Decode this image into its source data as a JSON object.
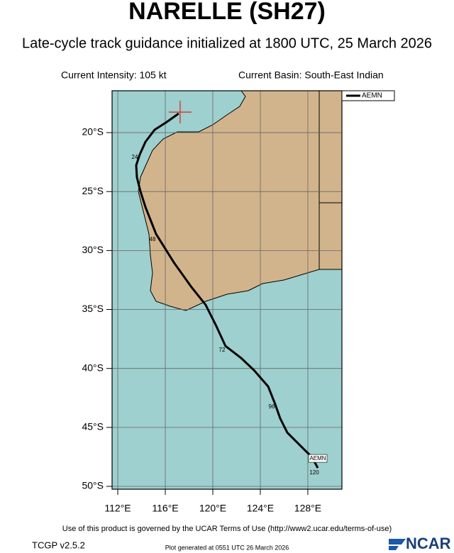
{
  "title": "NARELLE (SH27)",
  "subtitle": "Late-cycle track guidance initialized at 1800 UTC, 25 March 2026",
  "current_intensity": "Current Intensity: 105 kt",
  "current_basin": "Current Basin: South-East Indian",
  "map": {
    "lonlim": [
      111.52,
      130.87
    ],
    "latlim": [
      -16.45,
      -50.24
    ],
    "lonticks": [
      {
        "value": 112,
        "label": "112°E"
      },
      {
        "value": 116,
        "label": "116°E"
      },
      {
        "value": 120,
        "label": "120°E"
      },
      {
        "value": 124,
        "label": "124°E"
      },
      {
        "value": 128,
        "label": "128°E"
      }
    ],
    "latticks": [
      {
        "value": -20,
        "label": "20°S"
      },
      {
        "value": -25,
        "label": "25°S"
      },
      {
        "value": -30,
        "label": "30°S"
      },
      {
        "value": -35,
        "label": "35°S"
      },
      {
        "value": -40,
        "label": "40°S"
      },
      {
        "value": -45,
        "label": "45°S"
      },
      {
        "value": -50,
        "label": "50°S"
      }
    ],
    "current_position": {
      "lon": 117.25,
      "lat": -18.26
    },
    "track": {
      "name": "AEMN",
      "color": "#000000",
      "lon": [
        117.13,
        116.12,
        115.1,
        114.33,
        113.85,
        113.55,
        113.61,
        113.91,
        114.33,
        115.22,
        116.72,
        118.21,
        119.4,
        120.3,
        121.07,
        122.39,
        123.46,
        124.66,
        125.25,
        125.67,
        126.27,
        127.16,
        128.36,
        128.84
      ],
      "lat": [
        -18.38,
        -19.1,
        -19.76,
        -20.78,
        -21.86,
        -22.77,
        -23.79,
        -24.99,
        -26.32,
        -28.6,
        -31.01,
        -33.11,
        -34.61,
        -36.42,
        -38.1,
        -39.12,
        -40.14,
        -41.53,
        -43.03,
        -44.23,
        -45.44,
        -46.34,
        -47.54,
        -48.44
      ],
      "hour_labels": [
        "24",
        "48",
        "72",
        "96",
        "120"
      ]
    }
  },
  "footer": {
    "terms": "Use of this product is governed by the UCAR Terms of Use (http://www2.ucar.edu/terms-of-use)",
    "version": "TCGP v2.5.2",
    "generated": "Plot generated at 0551 UTC   26 March 2026",
    "logo": "NCAR"
  }
}
